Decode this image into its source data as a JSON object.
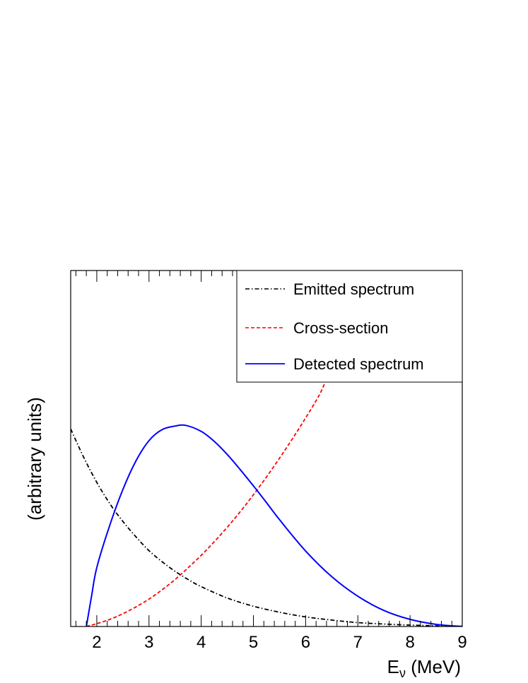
{
  "chart_data": {
    "type": "line",
    "title": "",
    "xlabel_main": "E",
    "xlabel_sub": "ν",
    "xlabel_unit": " (MeV)",
    "ylabel": "(arbitrary units)",
    "xlim": [
      1.5,
      9
    ],
    "ylim": [
      0,
      1
    ],
    "x_ticks": [
      2,
      3,
      4,
      5,
      6,
      7,
      8,
      9
    ],
    "y_ticks_shown": false,
    "grid": false,
    "legend_position": "top-right",
    "series": [
      {
        "name": "Emitted spectrum",
        "color": "#000000",
        "style": "dash-dot",
        "x": [
          1.5,
          1.75,
          2.0,
          2.25,
          2.5,
          2.75,
          3.0,
          3.25,
          3.5,
          3.75,
          4.0,
          4.5,
          5.0,
          5.5,
          6.0,
          6.5,
          7.0,
          7.5,
          8.0,
          8.5,
          9.0
        ],
        "y": [
          0.555,
          0.475,
          0.405,
          0.345,
          0.295,
          0.252,
          0.213,
          0.182,
          0.155,
          0.132,
          0.112,
          0.08,
          0.057,
          0.04,
          0.027,
          0.018,
          0.011,
          0.007,
          0.004,
          0.002,
          0.001
        ]
      },
      {
        "name": "Cross-section",
        "color": "#ff0000",
        "style": "dashed",
        "x": [
          1.8,
          2.0,
          2.25,
          2.5,
          2.75,
          3.0,
          3.25,
          3.5,
          3.75,
          4.0,
          4.25,
          4.5,
          4.75,
          5.0,
          5.25,
          5.5,
          5.75,
          6.0,
          6.25,
          6.37
        ],
        "y": [
          0.0,
          0.008,
          0.02,
          0.036,
          0.055,
          0.077,
          0.103,
          0.132,
          0.165,
          0.2,
          0.238,
          0.279,
          0.323,
          0.37,
          0.42,
          0.473,
          0.528,
          0.586,
          0.647,
          0.685
        ]
      },
      {
        "name": "Detected spectrum",
        "color": "#0000ff",
        "style": "solid",
        "x": [
          1.8,
          1.9,
          2.0,
          2.25,
          2.5,
          2.75,
          3.0,
          3.25,
          3.5,
          3.7,
          4.0,
          4.25,
          4.5,
          4.75,
          5.0,
          5.25,
          5.5,
          6.0,
          6.5,
          7.0,
          7.5,
          8.0,
          8.5,
          9.0
        ],
        "y": [
          0.0,
          0.085,
          0.165,
          0.285,
          0.385,
          0.465,
          0.522,
          0.553,
          0.563,
          0.565,
          0.548,
          0.52,
          0.483,
          0.44,
          0.395,
          0.348,
          0.3,
          0.212,
          0.14,
          0.085,
          0.045,
          0.02,
          0.006,
          0.0
        ]
      }
    ]
  }
}
